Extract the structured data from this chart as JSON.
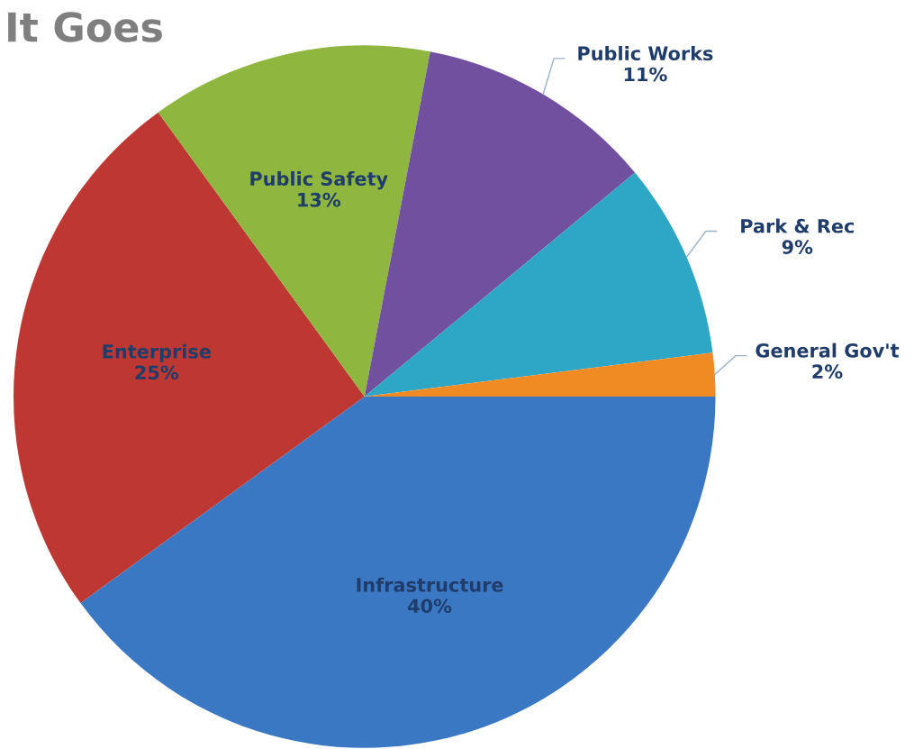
{
  "chart_data": {
    "type": "pie",
    "title": "It Goes",
    "categories": [
      "Infrastructure",
      "Enterprise",
      "Public Safety",
      "Public Works",
      "Park & Rec",
      "General Gov't"
    ],
    "values": [
      40,
      25,
      13,
      11,
      9,
      2
    ],
    "value_labels": [
      "40%",
      "25%",
      "13%",
      "11%",
      "9%",
      "2%"
    ],
    "colors": [
      "#3b78c4",
      "#bd3833",
      "#8fb63e",
      "#7150a0",
      "#2ea6c6",
      "#f08a22"
    ]
  }
}
